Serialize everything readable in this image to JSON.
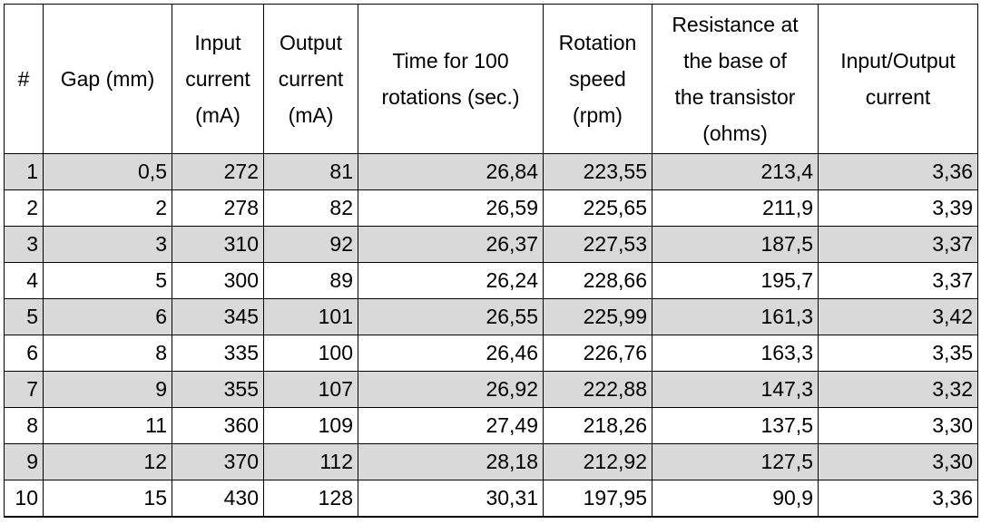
{
  "table": {
    "header": [
      "#",
      "Gap (mm)",
      "Input\ncurrent\n(mA)",
      "Output\ncurrent\n(mA)",
      "Time for 100\nrotations (sec.)",
      "Rotation\nspeed\n(rpm)",
      "Resistance at\nthe base of\nthe transistor\n(ohms)",
      "Input/Output\ncurrent"
    ],
    "rows": [
      [
        "1",
        "0,5",
        "272",
        "81",
        "26,84",
        "223,55",
        "213,4",
        "3,36"
      ],
      [
        "2",
        "2",
        "278",
        "82",
        "26,59",
        "225,65",
        "211,9",
        "3,39"
      ],
      [
        "3",
        "3",
        "310",
        "92",
        "26,37",
        "227,53",
        "187,5",
        "3,37"
      ],
      [
        "4",
        "5",
        "300",
        "89",
        "26,24",
        "228,66",
        "195,7",
        "3,37"
      ],
      [
        "5",
        "6",
        "345",
        "101",
        "26,55",
        "225,99",
        "161,3",
        "3,42"
      ],
      [
        "6",
        "8",
        "335",
        "100",
        "26,46",
        "226,76",
        "163,3",
        "3,35"
      ],
      [
        "7",
        "9",
        "355",
        "107",
        "26,92",
        "222,88",
        "147,3",
        "3,32"
      ],
      [
        "8",
        "11",
        "360",
        "109",
        "27,49",
        "218,26",
        "137,5",
        "3,30"
      ],
      [
        "9",
        "12",
        "370",
        "112",
        "28,18",
        "212,92",
        "127,5",
        "3,30"
      ],
      [
        "10",
        "15",
        "430",
        "128",
        "30,31",
        "197,95",
        "90,9",
        "3,36"
      ]
    ]
  }
}
